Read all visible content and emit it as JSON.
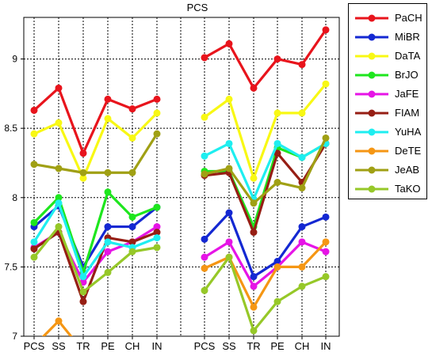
{
  "chart_data": {
    "type": "line",
    "title": "PCS",
    "xlabel": "",
    "ylabel": "",
    "ylim": [
      7,
      9.3
    ],
    "yticks": [
      "7",
      "7.5",
      "8",
      "8.5",
      "9"
    ],
    "grid": true,
    "legend_position": "right",
    "panels": [
      {
        "categories": [
          "PCS",
          "SS",
          "TR",
          "PE",
          "CH",
          "IN"
        ]
      },
      {
        "categories": [
          "PCS",
          "SS",
          "TR",
          "PE",
          "CH",
          "IN"
        ]
      }
    ],
    "series": [
      {
        "name": "PaCH",
        "color": "#e8141c",
        "left": [
          8.63,
          8.79,
          8.32,
          8.71,
          8.64,
          8.71
        ],
        "right": [
          9.01,
          9.11,
          8.79,
          9.0,
          8.96,
          9.21
        ]
      },
      {
        "name": "MiBR",
        "color": "#1428d2",
        "left": [
          7.79,
          7.94,
          7.5,
          7.79,
          7.79,
          7.93
        ],
        "right": [
          7.7,
          7.89,
          7.43,
          7.54,
          7.79,
          7.86
        ]
      },
      {
        "name": "DaTA",
        "color": "#f8f814",
        "left": [
          8.46,
          8.54,
          8.14,
          8.57,
          8.43,
          8.61
        ],
        "right": [
          8.58,
          8.71,
          8.14,
          8.61,
          8.61,
          8.82
        ]
      },
      {
        "name": "BrJO",
        "color": "#1ee61e",
        "left": [
          7.82,
          8.0,
          7.46,
          8.04,
          7.86,
          7.93
        ],
        "right": [
          8.19,
          8.19,
          7.79,
          8.36,
          8.29,
          8.39
        ]
      },
      {
        "name": "JaFE",
        "color": "#e614e6",
        "left": [
          7.64,
          7.75,
          7.39,
          7.61,
          7.68,
          7.79
        ],
        "right": [
          7.57,
          7.68,
          7.36,
          7.5,
          7.68,
          7.61
        ]
      },
      {
        "name": "FIAM",
        "color": "#961e14",
        "left": [
          7.63,
          7.75,
          7.25,
          7.71,
          7.68,
          7.75
        ],
        "right": [
          8.16,
          8.18,
          7.75,
          8.32,
          8.11,
          8.39
        ]
      },
      {
        "name": "YuHA",
        "color": "#1eeef0",
        "left": [
          7.68,
          7.96,
          7.43,
          7.68,
          7.64,
          7.71
        ],
        "right": [
          8.3,
          8.39,
          7.99,
          8.39,
          8.29,
          8.39
        ]
      },
      {
        "name": "DeTE",
        "color": "#f59614",
        "left": [
          6.93,
          7.11,
          6.89,
          null,
          null,
          null
        ],
        "right": [
          7.49,
          7.57,
          7.21,
          7.5,
          7.5,
          7.68
        ]
      },
      {
        "name": "JeAB",
        "color": "#a0a014",
        "left": [
          8.24,
          8.21,
          8.18,
          8.18,
          8.18,
          8.46
        ],
        "right": [
          8.17,
          8.21,
          7.96,
          8.11,
          8.07,
          8.43
        ]
      },
      {
        "name": "TaKO",
        "color": "#96c828",
        "left": [
          7.57,
          7.79,
          7.32,
          7.46,
          7.61,
          7.64
        ],
        "right": [
          7.33,
          7.57,
          7.04,
          7.25,
          7.36,
          7.43
        ]
      }
    ]
  }
}
